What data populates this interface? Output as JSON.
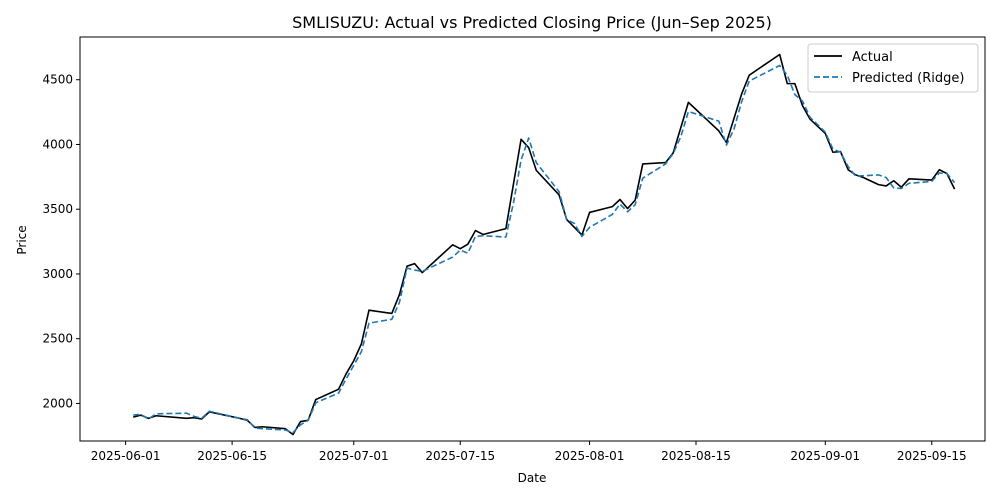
{
  "chart_data": {
    "type": "line",
    "title": "SMLISUZU: Actual vs Predicted Closing Price (Jun–Sep 2025)",
    "xlabel": "Date",
    "ylabel": "Price",
    "xlim": [
      "2025-05-26",
      "2025-09-22"
    ],
    "ylim": [
      1710,
      4830
    ],
    "x_ticks": [
      "2025-06-01",
      "2025-06-15",
      "2025-07-01",
      "2025-07-15",
      "2025-08-01",
      "2025-08-15",
      "2025-09-01",
      "2025-09-15"
    ],
    "y_ticks": [
      2000,
      2500,
      3000,
      3500,
      4000,
      4500
    ],
    "grid": false,
    "legend_position": "top-right",
    "series": [
      {
        "name": "Actual",
        "color": "#000000",
        "style": "solid",
        "points": [
          [
            "2025-06-02",
            1895
          ],
          [
            "2025-06-03",
            1910
          ],
          [
            "2025-06-04",
            1885
          ],
          [
            "2025-06-05",
            1905
          ],
          [
            "2025-06-09",
            1885
          ],
          [
            "2025-06-10",
            1890
          ],
          [
            "2025-06-11",
            1880
          ],
          [
            "2025-06-12",
            1935
          ],
          [
            "2025-06-16",
            1885
          ],
          [
            "2025-06-17",
            1870
          ],
          [
            "2025-06-18",
            1815
          ],
          [
            "2025-06-19",
            1820
          ],
          [
            "2025-06-22",
            1805
          ],
          [
            "2025-06-23",
            1760
          ],
          [
            "2025-06-24",
            1860
          ],
          [
            "2025-06-25",
            1870
          ],
          [
            "2025-06-26",
            2030
          ],
          [
            "2025-06-29",
            2110
          ],
          [
            "2025-06-30",
            2230
          ],
          [
            "2025-07-01",
            2330
          ],
          [
            "2025-07-02",
            2460
          ],
          [
            "2025-07-03",
            2720
          ],
          [
            "2025-07-06",
            2695
          ],
          [
            "2025-07-07",
            2840
          ],
          [
            "2025-07-08",
            3060
          ],
          [
            "2025-07-09",
            3080
          ],
          [
            "2025-07-10",
            3010
          ],
          [
            "2025-07-14",
            3225
          ],
          [
            "2025-07-15",
            3195
          ],
          [
            "2025-07-16",
            3230
          ],
          [
            "2025-07-17",
            3335
          ],
          [
            "2025-07-18",
            3305
          ],
          [
            "2025-07-21",
            3350
          ],
          [
            "2025-07-23",
            4040
          ],
          [
            "2025-07-24",
            3975
          ],
          [
            "2025-07-25",
            3800
          ],
          [
            "2025-07-28",
            3610
          ],
          [
            "2025-07-29",
            3420
          ],
          [
            "2025-07-31",
            3300
          ],
          [
            "2025-08-01",
            3475
          ],
          [
            "2025-08-04",
            3520
          ],
          [
            "2025-08-05",
            3575
          ],
          [
            "2025-08-06",
            3505
          ],
          [
            "2025-08-07",
            3570
          ],
          [
            "2025-08-08",
            3850
          ],
          [
            "2025-08-11",
            3860
          ],
          [
            "2025-08-12",
            3935
          ],
          [
            "2025-08-14",
            4325
          ],
          [
            "2025-08-18",
            4105
          ],
          [
            "2025-08-19",
            4015
          ],
          [
            "2025-08-21",
            4390
          ],
          [
            "2025-08-22",
            4535
          ],
          [
            "2025-08-26",
            4695
          ],
          [
            "2025-08-27",
            4470
          ],
          [
            "2025-08-28",
            4470
          ],
          [
            "2025-08-29",
            4300
          ],
          [
            "2025-08-30",
            4195
          ],
          [
            "2025-09-01",
            4085
          ],
          [
            "2025-09-02",
            3940
          ],
          [
            "2025-09-03",
            3945
          ],
          [
            "2025-09-04",
            3805
          ],
          [
            "2025-09-05",
            3765
          ],
          [
            "2025-09-06",
            3745
          ],
          [
            "2025-09-08",
            3690
          ],
          [
            "2025-09-09",
            3680
          ],
          [
            "2025-09-10",
            3720
          ],
          [
            "2025-09-11",
            3670
          ],
          [
            "2025-09-12",
            3735
          ],
          [
            "2025-09-15",
            3725
          ],
          [
            "2025-09-16",
            3805
          ],
          [
            "2025-09-17",
            3775
          ],
          [
            "2025-09-18",
            3655
          ]
        ]
      },
      {
        "name": "Predicted (Ridge)",
        "color": "#1f77b4",
        "style": "dashed",
        "points": [
          [
            "2025-06-02",
            1910
          ],
          [
            "2025-06-03",
            1915
          ],
          [
            "2025-06-04",
            1880
          ],
          [
            "2025-06-05",
            1920
          ],
          [
            "2025-06-09",
            1925
          ],
          [
            "2025-06-10",
            1900
          ],
          [
            "2025-06-11",
            1885
          ],
          [
            "2025-06-12",
            1940
          ],
          [
            "2025-06-16",
            1885
          ],
          [
            "2025-06-17",
            1875
          ],
          [
            "2025-06-18",
            1810
          ],
          [
            "2025-06-19",
            1805
          ],
          [
            "2025-06-22",
            1795
          ],
          [
            "2025-06-23",
            1775
          ],
          [
            "2025-06-24",
            1835
          ],
          [
            "2025-06-25",
            1870
          ],
          [
            "2025-06-26",
            2005
          ],
          [
            "2025-06-29",
            2080
          ],
          [
            "2025-06-30",
            2190
          ],
          [
            "2025-07-01",
            2295
          ],
          [
            "2025-07-02",
            2400
          ],
          [
            "2025-07-03",
            2620
          ],
          [
            "2025-07-06",
            2650
          ],
          [
            "2025-07-07",
            2780
          ],
          [
            "2025-07-08",
            3045
          ],
          [
            "2025-07-09",
            3030
          ],
          [
            "2025-07-10",
            3020
          ],
          [
            "2025-07-14",
            3130
          ],
          [
            "2025-07-15",
            3185
          ],
          [
            "2025-07-16",
            3160
          ],
          [
            "2025-07-17",
            3290
          ],
          [
            "2025-07-18",
            3295
          ],
          [
            "2025-07-21",
            3285
          ],
          [
            "2025-07-22",
            3550
          ],
          [
            "2025-07-23",
            3880
          ],
          [
            "2025-07-24",
            4050
          ],
          [
            "2025-07-25",
            3860
          ],
          [
            "2025-07-28",
            3635
          ],
          [
            "2025-07-29",
            3420
          ],
          [
            "2025-07-30",
            3390
          ],
          [
            "2025-07-31",
            3290
          ],
          [
            "2025-08-01",
            3360
          ],
          [
            "2025-08-04",
            3460
          ],
          [
            "2025-08-05",
            3540
          ],
          [
            "2025-08-06",
            3480
          ],
          [
            "2025-08-07",
            3535
          ],
          [
            "2025-08-08",
            3740
          ],
          [
            "2025-08-11",
            3850
          ],
          [
            "2025-08-12",
            3930
          ],
          [
            "2025-08-13",
            4060
          ],
          [
            "2025-08-14",
            4255
          ],
          [
            "2025-08-18",
            4180
          ],
          [
            "2025-08-19",
            3995
          ],
          [
            "2025-08-20",
            4120
          ],
          [
            "2025-08-21",
            4330
          ],
          [
            "2025-08-22",
            4490
          ],
          [
            "2025-08-26",
            4610
          ],
          [
            "2025-08-27",
            4535
          ],
          [
            "2025-08-28",
            4385
          ],
          [
            "2025-08-29",
            4335
          ],
          [
            "2025-08-30",
            4210
          ],
          [
            "2025-09-01",
            4095
          ],
          [
            "2025-09-02",
            3965
          ],
          [
            "2025-09-03",
            3940
          ],
          [
            "2025-09-04",
            3830
          ],
          [
            "2025-09-05",
            3755
          ],
          [
            "2025-09-08",
            3765
          ],
          [
            "2025-09-09",
            3745
          ],
          [
            "2025-09-10",
            3665
          ],
          [
            "2025-09-11",
            3660
          ],
          [
            "2025-09-12",
            3700
          ],
          [
            "2025-09-15",
            3715
          ],
          [
            "2025-09-16",
            3780
          ],
          [
            "2025-09-17",
            3775
          ],
          [
            "2025-09-18",
            3705
          ]
        ]
      }
    ]
  }
}
